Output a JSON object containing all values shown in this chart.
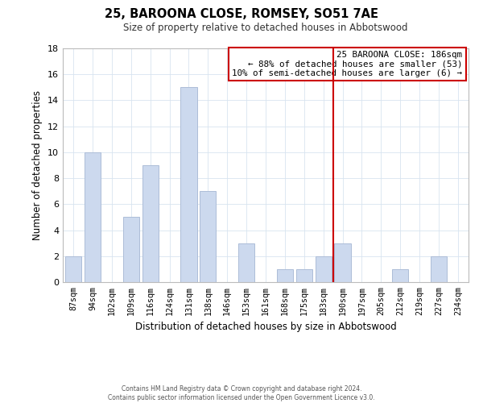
{
  "title": "25, BAROONA CLOSE, ROMSEY, SO51 7AE",
  "subtitle": "Size of property relative to detached houses in Abbotswood",
  "xlabel": "Distribution of detached houses by size in Abbotswood",
  "ylabel": "Number of detached properties",
  "categories": [
    "87sqm",
    "94sqm",
    "102sqm",
    "109sqm",
    "116sqm",
    "124sqm",
    "131sqm",
    "138sqm",
    "146sqm",
    "153sqm",
    "161sqm",
    "168sqm",
    "175sqm",
    "183sqm",
    "190sqm",
    "197sqm",
    "205sqm",
    "212sqm",
    "219sqm",
    "227sqm",
    "234sqm"
  ],
  "values": [
    2,
    10,
    0,
    5,
    9,
    0,
    15,
    7,
    0,
    3,
    0,
    1,
    1,
    2,
    3,
    0,
    0,
    1,
    0,
    2,
    0
  ],
  "bar_color": "#ccd9ee",
  "bar_edgecolor": "#adbdd8",
  "ylim": [
    0,
    18
  ],
  "yticks": [
    0,
    2,
    4,
    6,
    8,
    10,
    12,
    14,
    16,
    18
  ],
  "vline_x": 13.5,
  "vline_color": "#cc0000",
  "annotation_title": "25 BAROONA CLOSE: 186sqm",
  "annotation_line1": "← 88% of detached houses are smaller (53)",
  "annotation_line2": "10% of semi-detached houses are larger (6) →",
  "annotation_box_color": "#ffffff",
  "annotation_box_edgecolor": "#cc0000",
  "footer_line1": "Contains HM Land Registry data © Crown copyright and database right 2024.",
  "footer_line2": "Contains public sector information licensed under the Open Government Licence v3.0.",
  "background_color": "#ffffff",
  "grid_color": "#d8e4f0"
}
